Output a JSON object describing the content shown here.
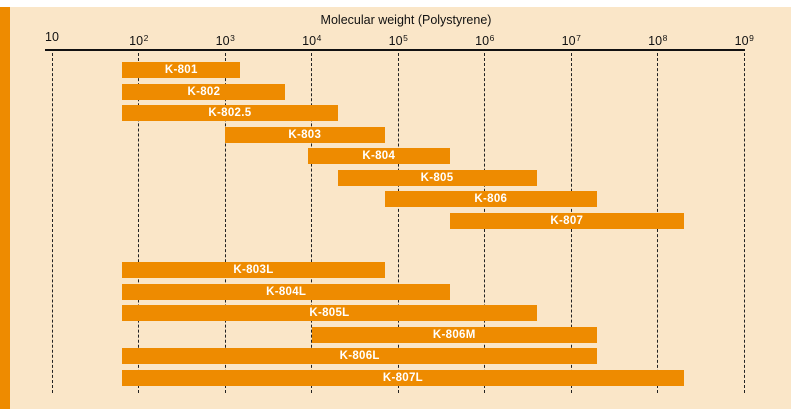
{
  "page": {
    "background_color": "#ffffff",
    "panel_color": "#FAE6C8",
    "accent_stripe_color": "#EE8B00"
  },
  "chart_data": {
    "type": "bar",
    "variant": "horizontal-log-range-bars",
    "title": "Molecular weight (Polystyrene)",
    "bar_color": "#EE8B00",
    "bar_label_color": "#ffffff",
    "axis_color": "#111111",
    "gridline_style": "dashed",
    "x_axis": {
      "scale": "log10",
      "min": 10,
      "max": 1000000000,
      "tick_labels": [
        {
          "base": "10",
          "exp": ""
        },
        {
          "base": "10",
          "exp": "2"
        },
        {
          "base": "10",
          "exp": "3"
        },
        {
          "base": "10",
          "exp": "4"
        },
        {
          "base": "10",
          "exp": "5"
        },
        {
          "base": "10",
          "exp": "6"
        },
        {
          "base": "10",
          "exp": "7"
        },
        {
          "base": "10",
          "exp": "8"
        },
        {
          "base": "10",
          "exp": "9"
        }
      ]
    },
    "bar_groups": [
      {
        "bars": [
          {
            "label": "K-801",
            "mw_min": 65,
            "mw_max": 1500
          },
          {
            "label": "K-802",
            "mw_min": 65,
            "mw_max": 5000
          },
          {
            "label": "K-802.5",
            "mw_min": 65,
            "mw_max": 20000
          },
          {
            "label": "K-803",
            "mw_min": 1000,
            "mw_max": 70000
          },
          {
            "label": "K-804",
            "mw_min": 9000,
            "mw_max": 400000
          },
          {
            "label": "K-805",
            "mw_min": 20000,
            "mw_max": 4000000
          },
          {
            "label": "K-806",
            "mw_min": 70000,
            "mw_max": 20000000
          },
          {
            "label": "K-807",
            "mw_min": 400000,
            "mw_max": 200000000
          }
        ]
      },
      {
        "bars": [
          {
            "label": "K-803L",
            "mw_min": 65,
            "mw_max": 70000
          },
          {
            "label": "K-804L",
            "mw_min": 65,
            "mw_max": 400000
          },
          {
            "label": "K-805L",
            "mw_min": 65,
            "mw_max": 4000000
          },
          {
            "label": "K-806M",
            "mw_min": 10000,
            "mw_max": 20000000
          },
          {
            "label": "K-806L",
            "mw_min": 65,
            "mw_max": 20000000
          },
          {
            "label": "K-807L",
            "mw_min": 65,
            "mw_max": 200000000
          }
        ]
      }
    ]
  }
}
